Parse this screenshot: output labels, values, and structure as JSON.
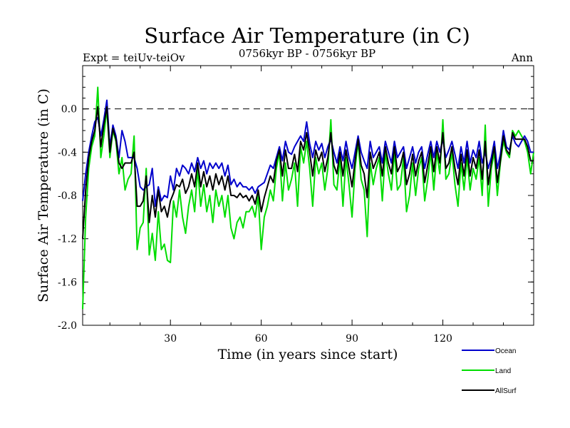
{
  "header": {
    "title": "Surface Air Temperature (in C)",
    "expt": "Expt = teiUv-teiOv",
    "period": "0756kyr BP - 0756kyr BP",
    "season": "Ann"
  },
  "chart_data": {
    "type": "line",
    "title": "Surface Air Temperature (in C)",
    "xlabel": "Time (in years since start)",
    "ylabel": "Surface Air Temperature (in C)",
    "xlim": [
      1,
      150
    ],
    "ylim": [
      -2.0,
      0.4
    ],
    "xticks": [
      30,
      60,
      90,
      120
    ],
    "xtick_labels": [
      "30",
      "60",
      "90",
      "120"
    ],
    "yticks": [
      -2.0,
      -1.6,
      -1.2,
      -0.8,
      -0.4,
      0.0
    ],
    "ytick_labels": [
      "-2.0",
      "-1.6",
      "-1.2",
      "-0.8",
      "-0.4",
      "0.0"
    ],
    "reference_line": 0.0,
    "x": [
      1,
      2,
      3,
      4,
      5,
      6,
      7,
      8,
      9,
      10,
      11,
      12,
      13,
      14,
      15,
      16,
      17,
      18,
      19,
      20,
      21,
      22,
      23,
      24,
      25,
      26,
      27,
      28,
      29,
      30,
      31,
      32,
      33,
      34,
      35,
      36,
      37,
      38,
      39,
      40,
      41,
      42,
      43,
      44,
      45,
      46,
      47,
      48,
      49,
      50,
      51,
      52,
      53,
      54,
      55,
      56,
      57,
      58,
      59,
      60,
      61,
      62,
      63,
      64,
      65,
      66,
      67,
      68,
      69,
      70,
      71,
      72,
      73,
      74,
      75,
      76,
      77,
      78,
      79,
      80,
      81,
      82,
      83,
      84,
      85,
      86,
      87,
      88,
      89,
      90,
      91,
      92,
      93,
      94,
      95,
      96,
      97,
      98,
      99,
      100,
      101,
      102,
      103,
      104,
      105,
      106,
      107,
      108,
      109,
      110,
      111,
      112,
      113,
      114,
      115,
      116,
      117,
      118,
      119,
      120,
      121,
      122,
      123,
      124,
      125,
      126,
      127,
      128,
      129,
      130,
      131,
      132,
      133,
      134,
      135,
      136,
      137,
      138,
      139,
      140,
      141,
      142,
      143,
      144,
      145,
      146,
      147,
      148,
      149,
      150
    ],
    "series": [
      {
        "name": "Ocean",
        "color": "#0000cc",
        "values": [
          -0.85,
          -0.6,
          -0.4,
          -0.25,
          -0.12,
          -0.08,
          -0.25,
          -0.1,
          0.08,
          -0.35,
          -0.15,
          -0.25,
          -0.45,
          -0.2,
          -0.3,
          -0.45,
          -0.45,
          -0.45,
          -0.55,
          -0.72,
          -0.75,
          -0.72,
          -0.7,
          -0.55,
          -0.9,
          -0.72,
          -0.85,
          -0.8,
          -0.82,
          -0.62,
          -0.75,
          -0.55,
          -0.62,
          -0.52,
          -0.55,
          -0.6,
          -0.5,
          -0.58,
          -0.45,
          -0.55,
          -0.48,
          -0.6,
          -0.5,
          -0.55,
          -0.5,
          -0.55,
          -0.5,
          -0.62,
          -0.52,
          -0.7,
          -0.65,
          -0.72,
          -0.68,
          -0.72,
          -0.72,
          -0.75,
          -0.72,
          -0.78,
          -0.72,
          -0.7,
          -0.68,
          -0.6,
          -0.52,
          -0.55,
          -0.45,
          -0.35,
          -0.48,
          -0.3,
          -0.4,
          -0.42,
          -0.35,
          -0.3,
          -0.25,
          -0.3,
          -0.12,
          -0.32,
          -0.45,
          -0.3,
          -0.38,
          -0.32,
          -0.45,
          -0.35,
          -0.28,
          -0.4,
          -0.5,
          -0.35,
          -0.48,
          -0.3,
          -0.45,
          -0.55,
          -0.4,
          -0.25,
          -0.4,
          -0.48,
          -0.55,
          -0.3,
          -0.45,
          -0.4,
          -0.35,
          -0.5,
          -0.3,
          -0.4,
          -0.5,
          -0.3,
          -0.45,
          -0.4,
          -0.35,
          -0.55,
          -0.45,
          -0.35,
          -0.5,
          -0.4,
          -0.35,
          -0.55,
          -0.42,
          -0.3,
          -0.45,
          -0.3,
          -0.4,
          -0.28,
          -0.45,
          -0.38,
          -0.3,
          -0.42,
          -0.55,
          -0.35,
          -0.5,
          -0.3,
          -0.5,
          -0.38,
          -0.45,
          -0.3,
          -0.5,
          -0.4,
          -0.55,
          -0.45,
          -0.3,
          -0.55,
          -0.42,
          -0.2,
          -0.35,
          -0.38,
          -0.25,
          -0.32,
          -0.35,
          -0.3,
          -0.25,
          -0.3,
          -0.4,
          -0.4
        ]
      },
      {
        "name": "Land",
        "color": "#00dd00",
        "values": [
          -1.85,
          -1.0,
          -0.55,
          -0.35,
          -0.25,
          0.2,
          -0.45,
          -0.25,
          0.0,
          -0.45,
          -0.2,
          -0.3,
          -0.6,
          -0.45,
          -0.75,
          -0.65,
          -0.6,
          -0.25,
          -1.3,
          -1.1,
          -1.05,
          -0.55,
          -1.35,
          -1.15,
          -1.4,
          -0.95,
          -1.3,
          -1.25,
          -1.4,
          -1.42,
          -0.85,
          -1.0,
          -0.75,
          -1.0,
          -1.15,
          -0.9,
          -0.75,
          -0.95,
          -0.55,
          -0.9,
          -0.7,
          -0.95,
          -0.8,
          -1.05,
          -0.75,
          -0.9,
          -0.8,
          -1.0,
          -0.8,
          -1.1,
          -1.2,
          -1.05,
          -1.0,
          -1.1,
          -0.95,
          -0.95,
          -0.9,
          -1.0,
          -0.8,
          -1.3,
          -1.0,
          -0.9,
          -0.75,
          -0.85,
          -0.55,
          -0.4,
          -0.85,
          -0.5,
          -0.75,
          -0.65,
          -0.5,
          -0.9,
          -0.35,
          -0.5,
          -0.3,
          -0.55,
          -0.9,
          -0.45,
          -0.6,
          -0.5,
          -0.75,
          -0.55,
          -0.1,
          -0.7,
          -0.75,
          -0.45,
          -0.9,
          -0.45,
          -0.7,
          -1.0,
          -0.55,
          -0.3,
          -0.65,
          -0.75,
          -1.18,
          -0.5,
          -0.7,
          -0.55,
          -0.45,
          -0.85,
          -0.4,
          -0.6,
          -0.75,
          -0.4,
          -0.75,
          -0.7,
          -0.45,
          -0.95,
          -0.8,
          -0.5,
          -0.8,
          -0.55,
          -0.45,
          -0.85,
          -0.65,
          -0.4,
          -0.75,
          -0.4,
          -0.6,
          -0.1,
          -0.65,
          -0.6,
          -0.4,
          -0.7,
          -0.9,
          -0.5,
          -0.75,
          -0.45,
          -0.75,
          -0.55,
          -0.65,
          -0.45,
          -0.8,
          -0.15,
          -0.9,
          -0.55,
          -0.4,
          -0.8,
          -0.5,
          -0.3,
          -0.4,
          -0.45,
          -0.2,
          -0.25,
          -0.2,
          -0.25,
          -0.3,
          -0.4,
          -0.6,
          -0.4
        ]
      },
      {
        "name": "AllSurf",
        "color": "#000000",
        "values": [
          -1.2,
          -0.75,
          -0.45,
          -0.3,
          -0.2,
          0.02,
          -0.35,
          -0.15,
          0.02,
          -0.4,
          -0.18,
          -0.28,
          -0.5,
          -0.55,
          -0.5,
          -0.5,
          -0.5,
          -0.4,
          -0.9,
          -0.9,
          -0.85,
          -0.62,
          -1.05,
          -0.8,
          -1.0,
          -0.75,
          -0.95,
          -0.9,
          -1.0,
          -0.85,
          -0.78,
          -0.7,
          -0.72,
          -0.65,
          -0.78,
          -0.72,
          -0.6,
          -0.72,
          -0.5,
          -0.72,
          -0.58,
          -0.72,
          -0.62,
          -0.75,
          -0.6,
          -0.7,
          -0.62,
          -0.75,
          -0.62,
          -0.8,
          -0.8,
          -0.82,
          -0.78,
          -0.82,
          -0.8,
          -0.85,
          -0.8,
          -0.88,
          -0.75,
          -0.95,
          -0.82,
          -0.72,
          -0.62,
          -0.68,
          -0.48,
          -0.38,
          -0.62,
          -0.38,
          -0.55,
          -0.55,
          -0.42,
          -0.58,
          -0.3,
          -0.38,
          -0.22,
          -0.4,
          -0.62,
          -0.38,
          -0.48,
          -0.4,
          -0.58,
          -0.45,
          -0.22,
          -0.52,
          -0.6,
          -0.4,
          -0.62,
          -0.38,
          -0.55,
          -0.72,
          -0.48,
          -0.28,
          -0.52,
          -0.6,
          -0.82,
          -0.4,
          -0.55,
          -0.48,
          -0.4,
          -0.62,
          -0.35,
          -0.5,
          -0.6,
          -0.35,
          -0.58,
          -0.52,
          -0.4,
          -0.7,
          -0.6,
          -0.42,
          -0.62,
          -0.48,
          -0.4,
          -0.68,
          -0.52,
          -0.35,
          -0.58,
          -0.35,
          -0.5,
          -0.22,
          -0.55,
          -0.5,
          -0.35,
          -0.55,
          -0.7,
          -0.42,
          -0.62,
          -0.38,
          -0.62,
          -0.45,
          -0.55,
          -0.38,
          -0.65,
          -0.3,
          -0.7,
          -0.5,
          -0.35,
          -0.68,
          -0.48,
          -0.25,
          -0.38,
          -0.42,
          -0.22,
          -0.28,
          -0.28,
          -0.28,
          -0.28,
          -0.35,
          -0.48,
          -0.48
        ]
      }
    ]
  }
}
